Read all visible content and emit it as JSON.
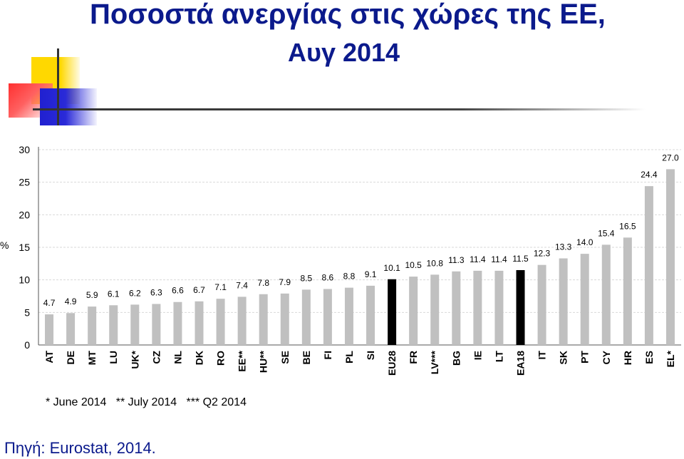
{
  "title": {
    "line1": "Ποσοστά ανεργίας στις χώρες της ΕΕ,",
    "line2": "Αυγ 2014"
  },
  "colors": {
    "title": "#0b1a8c",
    "bar_default": "#c0c0c0",
    "bar_highlight": "#000000"
  },
  "chart_data": {
    "type": "bar",
    "ylabel": "%",
    "ylim": [
      0,
      30
    ],
    "yticks": [
      0,
      5,
      10,
      15,
      20,
      25,
      30
    ],
    "grid": true,
    "categories": [
      "AT",
      "DE",
      "MT",
      "LU",
      "UK*",
      "CZ",
      "NL",
      "DK",
      "RO",
      "EE**",
      "HU**",
      "SE",
      "BE",
      "FI",
      "PL",
      "SI",
      "EU28",
      "FR",
      "LV***",
      "BG",
      "IE",
      "LT",
      "EA18",
      "IT",
      "SK",
      "PT",
      "CY",
      "HR",
      "ES",
      "EL*"
    ],
    "values": [
      4.7,
      4.9,
      5.9,
      6.1,
      6.2,
      6.3,
      6.6,
      6.7,
      7.1,
      7.4,
      7.8,
      7.9,
      8.5,
      8.6,
      8.8,
      9.1,
      10.1,
      10.5,
      10.8,
      11.3,
      11.4,
      11.4,
      11.5,
      12.3,
      13.3,
      14.0,
      15.4,
      16.5,
      24.4,
      27.0
    ],
    "value_labels": [
      "4.7",
      "4.9",
      "5.9",
      "6.1",
      "6.2",
      "6.3",
      "6.6",
      "6.7",
      "7.1",
      "7.4",
      "7.8",
      "7.9",
      "8.5",
      "8.6",
      "8.8",
      "9.1",
      "10.1",
      "10.5",
      "10.8",
      "11.3",
      "11.4",
      "11.4",
      "11.5",
      "12.3",
      "13.3",
      "14.0",
      "15.4",
      "16.5",
      "24.4",
      "27.0"
    ],
    "highlighted": [
      "EU28",
      "EA18"
    ],
    "notes": "* June 2014   ** July 2014   *** Q2 2014"
  },
  "source": "Πηγή: Eurostat, 2014."
}
